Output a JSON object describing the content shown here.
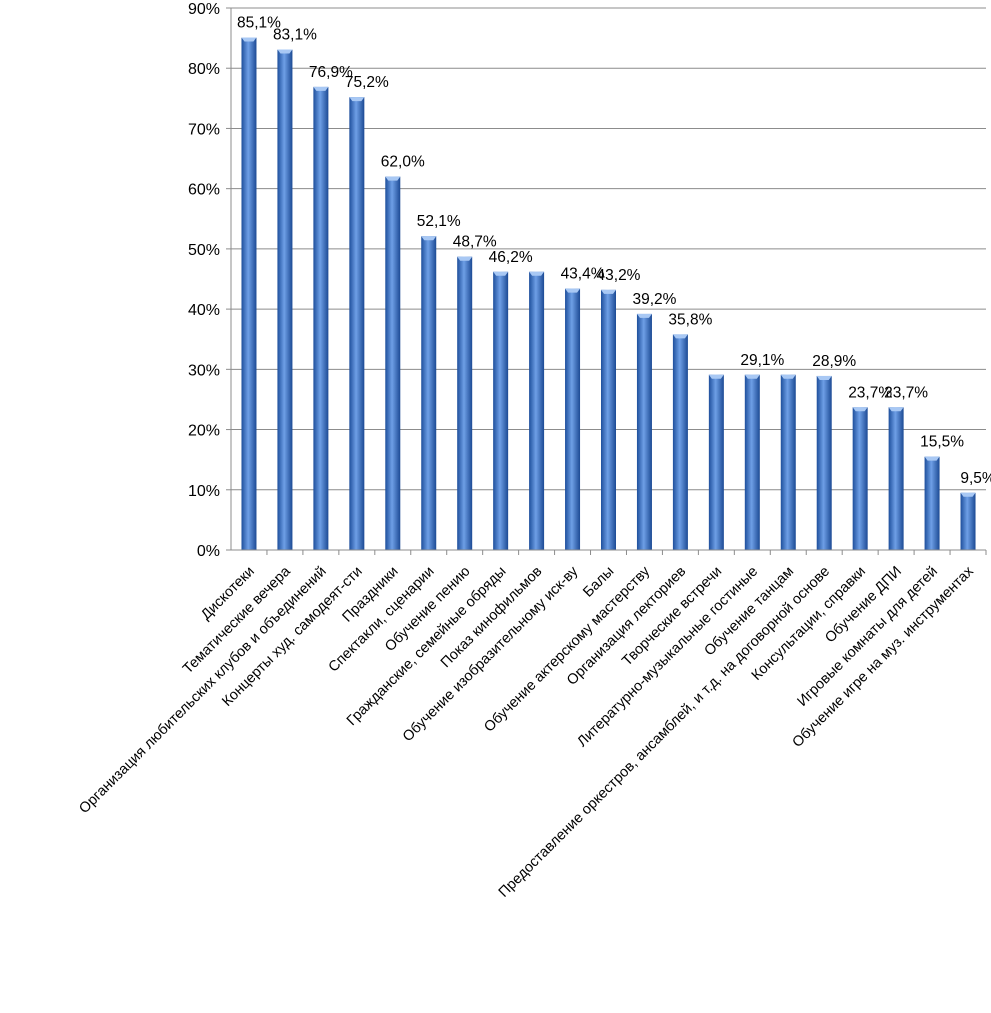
{
  "chart_data": {
    "type": "bar",
    "title": "",
    "xlabel": "",
    "ylabel": "",
    "ylim": [
      0,
      90
    ],
    "yticks": [
      0,
      10,
      20,
      30,
      40,
      50,
      60,
      70,
      80,
      90
    ],
    "ytick_labels": [
      "0%",
      "10%",
      "20%",
      "30%",
      "40%",
      "50%",
      "60%",
      "70%",
      "80%",
      "90%"
    ],
    "grid": true,
    "legend": "none",
    "bar_color": "#3a6fc4",
    "categories": [
      "Дискотеки",
      "Тематические вечера",
      "Организация любительских клубов и объединений",
      "Концерты худ. самодеят-сти",
      "Праздники",
      "Спектакли, сценарии",
      "Обучение пению",
      "Гражданские, семейные обряды",
      "Показ кинофильмов",
      "Обучение изобразительному иск-ву",
      "Балы",
      "Обучение актерскому мастерству",
      "Организация лекториев",
      "Творческие встречи",
      "Литературно-музыкальные гостиные",
      "Обучение танцам",
      "Предоставление оркестров, ансамблей, и т.д. на договорной основе",
      "Консультации, справки",
      "Обучение ДПИ",
      "Игровые комнаты для детей",
      "Обучение игре на муз. инструментах"
    ],
    "values": [
      85.1,
      83.1,
      76.9,
      75.2,
      62.0,
      52.1,
      48.7,
      46.2,
      46.2,
      43.4,
      43.2,
      39.2,
      35.8,
      29.1,
      29.1,
      29.1,
      28.9,
      23.7,
      23.7,
      15.5,
      9.5
    ],
    "data_labels": [
      "85,1%",
      "83,1%",
      "76,9%",
      "75,2%",
      "62,0%",
      "52,1%",
      "48,7%",
      "46,2%",
      "",
      "43,4%",
      "43,2%",
      "39,2%",
      "35,8%",
      "",
      "29,1%",
      "",
      "28,9%",
      "23,7%",
      "23,7%",
      "15,5%",
      "9,5%"
    ]
  }
}
